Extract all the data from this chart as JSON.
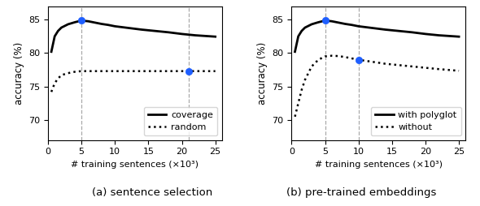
{
  "subplot_a": {
    "coverage_x": [
      0.5,
      1,
      1.5,
      2,
      3,
      4,
      5,
      6,
      7,
      8,
      9,
      10,
      12,
      14,
      16,
      18,
      20,
      22,
      25
    ],
    "coverage_y": [
      80.2,
      82.5,
      83.3,
      83.8,
      84.3,
      84.6,
      84.85,
      84.75,
      84.55,
      84.35,
      84.2,
      84.0,
      83.75,
      83.5,
      83.3,
      83.1,
      82.85,
      82.65,
      82.45
    ],
    "random_x": [
      0.5,
      1,
      1.5,
      2,
      3,
      4,
      5,
      6,
      7,
      8,
      9,
      10,
      12,
      14,
      16,
      18,
      20,
      22,
      25
    ],
    "random_y": [
      74.2,
      75.5,
      76.2,
      76.7,
      77.0,
      77.2,
      77.3,
      77.3,
      77.3,
      77.3,
      77.3,
      77.3,
      77.3,
      77.3,
      77.3,
      77.3,
      77.3,
      77.3,
      77.3
    ],
    "marker_coverage_x": 5,
    "marker_coverage_y": 84.85,
    "marker_random_x": 21,
    "marker_random_y": 77.3,
    "vline_coverage": 5,
    "vline_random": 21,
    "ylabel": "accuracy (%)",
    "xlabel": "# training sentences (×10³)",
    "ylim": [
      67,
      87
    ],
    "xlim": [
      0,
      26
    ],
    "yticks": [
      70,
      75,
      80,
      85
    ],
    "xticks": [
      0,
      5,
      10,
      15,
      20,
      25
    ],
    "legend_labels": [
      "coverage",
      "random"
    ],
    "caption": "(a) sentence selection"
  },
  "subplot_b": {
    "polyglot_x": [
      0.5,
      1,
      1.5,
      2,
      3,
      4,
      5,
      6,
      7,
      8,
      9,
      10,
      12,
      14,
      16,
      18,
      20,
      22,
      25
    ],
    "polyglot_y": [
      80.2,
      82.5,
      83.3,
      83.8,
      84.3,
      84.6,
      84.85,
      84.75,
      84.55,
      84.35,
      84.2,
      84.0,
      83.75,
      83.5,
      83.3,
      83.1,
      82.85,
      82.65,
      82.45
    ],
    "without_x": [
      0.5,
      1,
      1.5,
      2,
      3,
      4,
      5,
      6,
      7,
      8,
      9,
      10,
      12,
      14,
      16,
      18,
      20,
      22,
      25
    ],
    "without_y": [
      70.5,
      72.5,
      74.5,
      76.0,
      78.0,
      79.0,
      79.5,
      79.6,
      79.55,
      79.4,
      79.2,
      79.0,
      78.7,
      78.4,
      78.2,
      78.0,
      77.8,
      77.6,
      77.35
    ],
    "marker_polyglot_x": 5,
    "marker_polyglot_y": 84.85,
    "marker_without_x": 10,
    "marker_without_y": 79.0,
    "vline_polyglot": 5,
    "vline_without": 10,
    "ylabel": "accuracy (%)",
    "xlabel": "# training sentences (×10³)",
    "ylim": [
      67,
      87
    ],
    "xlim": [
      0,
      26
    ],
    "yticks": [
      70,
      75,
      80,
      85
    ],
    "xticks": [
      0,
      5,
      10,
      15,
      20,
      25
    ],
    "legend_labels": [
      "with polyglot",
      "without"
    ],
    "caption": "(b) pre-trained embeddings"
  },
  "marker_color": "#1f5fff",
  "marker_size": 6,
  "line_color": "black",
  "line_width": 2.0,
  "dot_linewidth": 1.8,
  "vline_color": "#aaaaaa",
  "vline_style": "--",
  "fig_width": 5.9,
  "fig_height": 2.54,
  "dpi": 100
}
